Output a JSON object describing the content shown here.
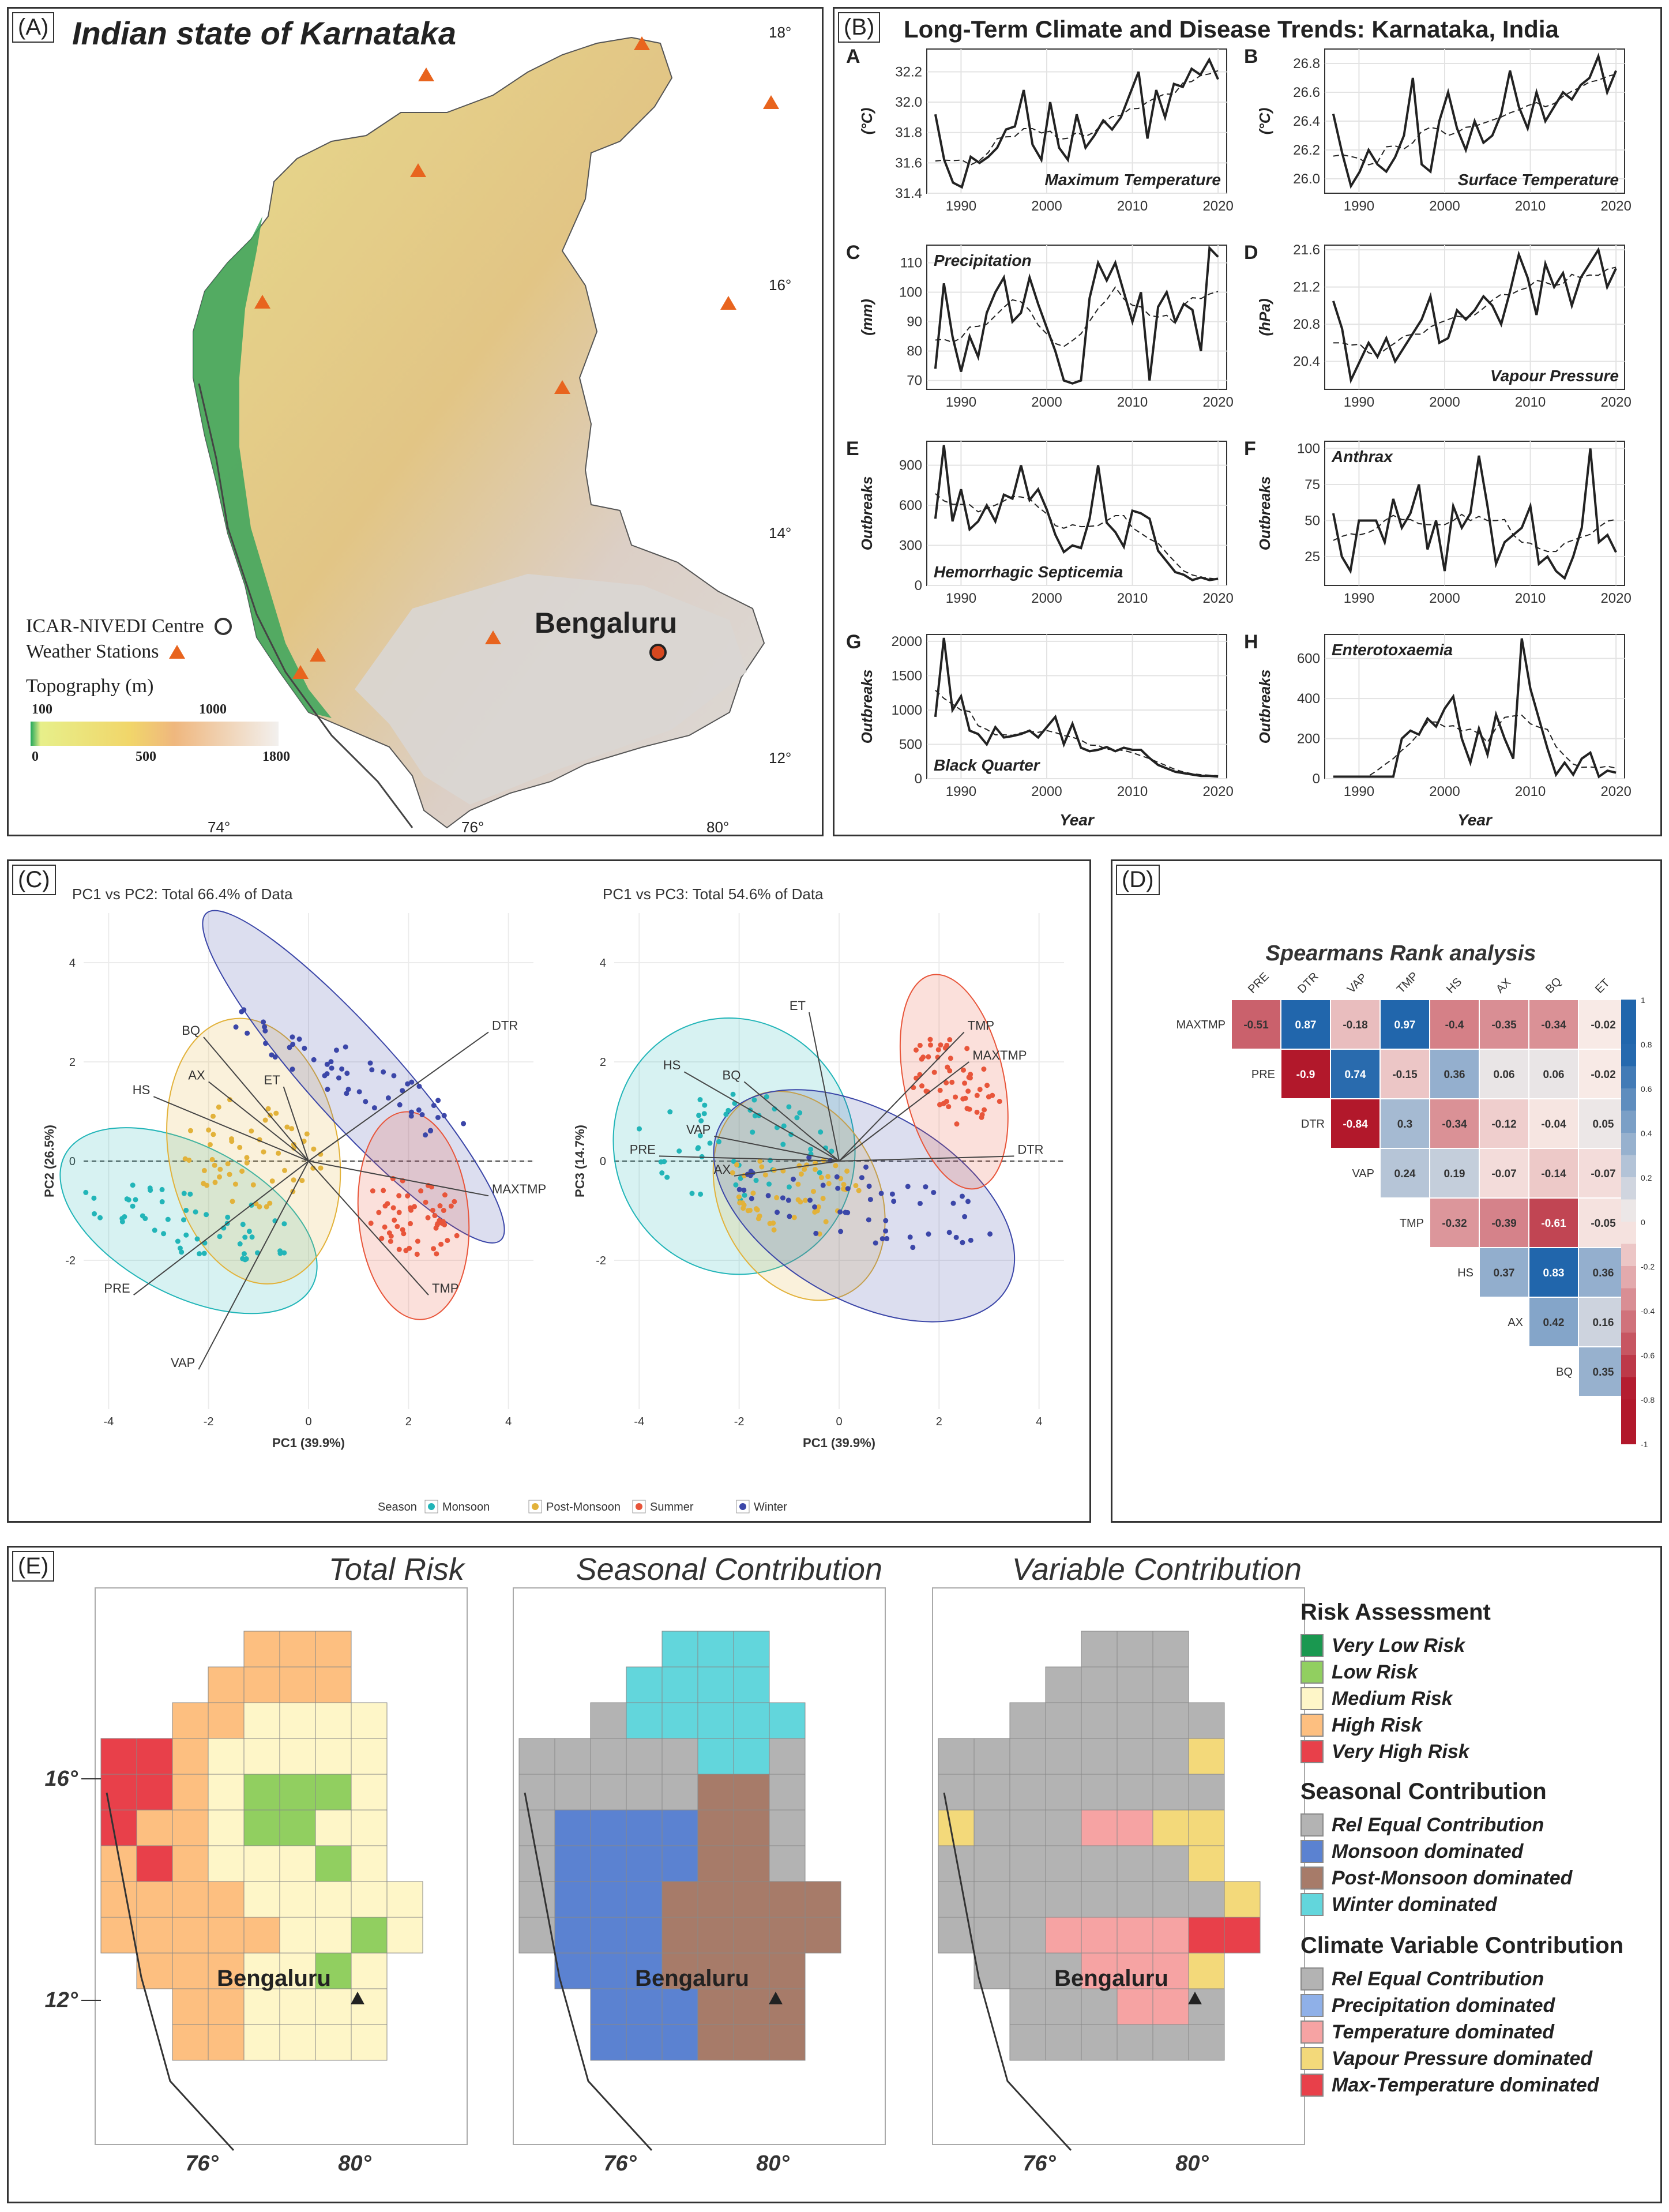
{
  "panelA": {
    "tag": "(A)",
    "title": "Indian state of Karnataka",
    "lat_labels": [
      "18°",
      "16°",
      "14°",
      "12°"
    ],
    "lon_labels": [
      "74°",
      "76°",
      "80°"
    ],
    "city": "Bengaluru",
    "legend": {
      "centre": "ICAR-NIVEDI Centre",
      "stations": "Weather Stations",
      "topo_title": "Topography (m)",
      "ticks_top": [
        "100",
        "1000"
      ],
      "ticks_bottom": [
        "0",
        "500",
        "1800"
      ]
    },
    "colors": {
      "land_low": "#e6d98a",
      "land_mid": "#d9b87a",
      "coast": "#3aa55c",
      "highland": "#d8d4d0",
      "station": "#e8641e"
    }
  },
  "panelB": {
    "tag": "(B)",
    "title": "Long-Term Climate and Disease Trends: Karnataka, India",
    "xlabel": "Year",
    "subplots": [
      {
        "letter": "A",
        "label": "Maximum Temperature",
        "ylab": "(°C)",
        "yticks": [
          "31.4",
          "31.6",
          "31.8",
          "32.0",
          "32.2"
        ],
        "ymin": 31.4,
        "ymax": 32.35,
        "label_pos": "br",
        "values": [
          31.92,
          31.62,
          31.47,
          31.44,
          31.64,
          31.6,
          31.64,
          31.7,
          31.82,
          31.84,
          32.08,
          31.72,
          31.62,
          32.0,
          31.7,
          31.62,
          31.92,
          31.7,
          31.78,
          31.88,
          31.82,
          31.9,
          32.05,
          32.2,
          31.76,
          32.08,
          31.9,
          32.12,
          32.1,
          32.22,
          32.18,
          32.28,
          32.15
        ]
      },
      {
        "letter": "B",
        "label": "Surface Temperature",
        "ylab": "(°C)",
        "yticks": [
          "26.0",
          "26.2",
          "26.4",
          "26.6",
          "26.8"
        ],
        "ymin": 25.9,
        "ymax": 26.9,
        "label_pos": "br",
        "values": [
          26.45,
          26.18,
          25.95,
          26.05,
          26.2,
          26.1,
          26.05,
          26.15,
          26.3,
          26.7,
          26.1,
          26.05,
          26.4,
          26.6,
          26.35,
          26.2,
          26.4,
          26.25,
          26.3,
          26.45,
          26.75,
          26.5,
          26.35,
          26.6,
          26.4,
          26.5,
          26.6,
          26.55,
          26.65,
          26.7,
          26.85,
          26.6,
          26.75
        ]
      },
      {
        "letter": "C",
        "label": "Precipitation",
        "ylab": "(mm)",
        "yticks": [
          "70",
          "80",
          "90",
          "100",
          "110"
        ],
        "ymin": 67,
        "ymax": 116,
        "label_pos": "tl",
        "values": [
          74,
          103,
          85,
          73,
          85,
          78,
          93,
          100,
          105,
          90,
          93,
          105,
          96,
          88,
          80,
          70,
          69,
          70,
          98,
          110,
          104,
          110,
          100,
          90,
          100,
          70,
          95,
          100,
          90,
          96,
          94,
          80,
          115,
          112
        ]
      },
      {
        "letter": "D",
        "label": "Vapour Pressure",
        "ylab": "(hPa)",
        "yticks": [
          "20.4",
          "20.8",
          "21.2",
          "21.6"
        ],
        "ymin": 20.1,
        "ymax": 21.65,
        "label_pos": "br",
        "values": [
          21.05,
          20.75,
          20.2,
          20.4,
          20.6,
          20.45,
          20.65,
          20.4,
          20.55,
          20.7,
          20.85,
          21.1,
          20.6,
          20.65,
          20.95,
          20.85,
          20.95,
          21.1,
          21.0,
          20.8,
          21.15,
          21.55,
          21.3,
          20.9,
          21.45,
          21.2,
          21.35,
          21.0,
          21.3,
          21.45,
          21.6,
          21.2,
          21.4
        ]
      },
      {
        "letter": "E",
        "label": "Hemorrhagic Septicemia",
        "ylab": "Outbreaks",
        "yticks": [
          "0",
          "300",
          "600",
          "900"
        ],
        "ymin": 0,
        "ymax": 1080,
        "label_pos": "bl",
        "values": [
          500,
          1050,
          480,
          720,
          420,
          480,
          600,
          480,
          680,
          650,
          900,
          640,
          720,
          570,
          380,
          250,
          300,
          280,
          500,
          900,
          470,
          400,
          290,
          560,
          540,
          500,
          260,
          180,
          100,
          80,
          40,
          60,
          40,
          50
        ]
      },
      {
        "letter": "F",
        "label": "Anthrax",
        "ylab": "Outbreaks",
        "yticks": [
          "25",
          "50",
          "75",
          "100"
        ],
        "ymin": 5,
        "ymax": 105,
        "label_pos": "tl",
        "values": [
          55,
          25,
          15,
          50,
          50,
          50,
          35,
          65,
          45,
          55,
          75,
          30,
          50,
          15,
          60,
          45,
          55,
          95,
          60,
          20,
          35,
          40,
          45,
          60,
          20,
          25,
          15,
          10,
          25,
          45,
          100,
          35,
          40,
          28
        ]
      },
      {
        "letter": "G",
        "label": "Black Quarter",
        "ylab": "Outbreaks",
        "yticks": [
          "0",
          "500",
          "1000",
          "1500",
          "2000"
        ],
        "ymin": 0,
        "ymax": 2100,
        "label_pos": "bl",
        "values": [
          900,
          2050,
          1000,
          1200,
          700,
          650,
          500,
          750,
          600,
          620,
          650,
          700,
          600,
          750,
          900,
          500,
          800,
          450,
          400,
          420,
          460,
          400,
          450,
          420,
          420,
          300,
          200,
          150,
          100,
          80,
          60,
          40,
          40,
          30
        ]
      },
      {
        "letter": "H",
        "label": "Enterotoxaemia",
        "ylab": "Outbreaks",
        "yticks": [
          "0",
          "200",
          "400",
          "600"
        ],
        "ymin": 0,
        "ymax": 720,
        "label_pos": "tl",
        "values": [
          10,
          10,
          10,
          10,
          10,
          10,
          10,
          10,
          200,
          240,
          220,
          300,
          260,
          350,
          410,
          200,
          80,
          250,
          120,
          320,
          200,
          100,
          700,
          450,
          300,
          150,
          20,
          80,
          20,
          100,
          130,
          10,
          40,
          30
        ]
      }
    ],
    "xticks": [
      "1990",
      "2000",
      "2010",
      "2020"
    ]
  },
  "panelC": {
    "tag": "(C)",
    "left_title": "PC1 vs PC2: Total 66.4% of Data",
    "right_title": "PC1 vs PC3: Total 54.6% of Data",
    "left_ylab": "PC2 (26.5%)",
    "right_ylab": "PC3 (14.7%)",
    "xlab": "PC1 (39.9%)",
    "ticks": [
      "-4",
      "-2",
      "0",
      "2",
      "4"
    ],
    "yticks_left": [
      "4",
      "2",
      "0",
      "-2"
    ],
    "yticks_right": [
      "4",
      "2",
      "0",
      "-2"
    ],
    "vectors_left": [
      {
        "name": "DTR",
        "dx": 3.6,
        "dy": 2.6
      },
      {
        "name": "MAXTMP",
        "dx": 3.6,
        "dy": -0.7
      },
      {
        "name": "TMP",
        "dx": 2.4,
        "dy": -2.7
      },
      {
        "name": "VAP",
        "dx": -2.2,
        "dy": -4.2
      },
      {
        "name": "PRE",
        "dx": -3.5,
        "dy": -2.7
      },
      {
        "name": "HS",
        "dx": -3.1,
        "dy": 1.3
      },
      {
        "name": "AX",
        "dx": -2.0,
        "dy": 1.6
      },
      {
        "name": "BQ",
        "dx": -2.1,
        "dy": 2.5
      },
      {
        "name": "ET",
        "dx": -0.5,
        "dy": 1.5
      }
    ],
    "vectors_right": [
      {
        "name": "TMP",
        "dx": 2.5,
        "dy": 2.6
      },
      {
        "name": "MAXTMP",
        "dx": 2.6,
        "dy": 2.0
      },
      {
        "name": "DTR",
        "dx": 3.5,
        "dy": 0.1
      },
      {
        "name": "ET",
        "dx": -0.6,
        "dy": 3.0
      },
      {
        "name": "HS",
        "dx": -3.1,
        "dy": 1.8
      },
      {
        "name": "BQ",
        "dx": -1.9,
        "dy": 1.6
      },
      {
        "name": "AX",
        "dx": -2.1,
        "dy": -0.3
      },
      {
        "name": "VAP",
        "dx": -2.5,
        "dy": 0.5
      },
      {
        "name": "PRE",
        "dx": -3.6,
        "dy": 0.1
      }
    ],
    "legend": {
      "title": "Season",
      "items": [
        "Monsoon",
        "Post-Monsoon",
        "Summer",
        "Winter"
      ]
    },
    "colors": {
      "Monsoon": "#22b5b8",
      "Post-Monsoon": "#e2b23a",
      "Summer": "#e8553a",
      "Winter": "#3b46a8"
    }
  },
  "panelD": {
    "tag": "(D)",
    "title": "Spearmans Rank analysis",
    "cols": [
      "PRE",
      "DTR",
      "VAP",
      "TMP",
      "HS",
      "AX",
      "BQ",
      "ET"
    ],
    "rows": [
      "MAXTMP",
      "PRE",
      "DTR",
      "VAP",
      "TMP",
      "HS",
      "AX",
      "BQ"
    ],
    "matrix": [
      [
        -0.51,
        0.87,
        -0.18,
        0.97,
        -0.4,
        -0.35,
        -0.34,
        -0.02
      ],
      [
        null,
        -0.9,
        0.74,
        -0.15,
        0.36,
        0.06,
        0.06,
        -0.02
      ],
      [
        null,
        null,
        -0.84,
        0.3,
        -0.34,
        -0.12,
        -0.04,
        0.05
      ],
      [
        null,
        null,
        null,
        0.24,
        0.19,
        -0.07,
        -0.14,
        -0.07
      ],
      [
        null,
        null,
        null,
        null,
        -0.32,
        -0.39,
        -0.61,
        -0.05
      ],
      [
        null,
        null,
        null,
        null,
        null,
        0.37,
        0.83,
        0.36
      ],
      [
        null,
        null,
        null,
        null,
        null,
        null,
        0.42,
        0.16
      ],
      [
        null,
        null,
        null,
        null,
        null,
        null,
        null,
        0.35
      ]
    ],
    "scale_ticks": [
      "1",
      "0.8",
      "0.6",
      "0.4",
      "0.2",
      "0",
      "-0.2",
      "-0.4",
      "-0.6",
      "-0.8",
      "-1"
    ]
  },
  "panelE": {
    "tag": "(E)",
    "map_titles": [
      "Total Risk",
      "Seasonal Contribution",
      "Variable Contribution"
    ],
    "city": "Bengaluru",
    "lat_labels": [
      "16°",
      "12°"
    ],
    "lon_labels": [
      "76°",
      "80°"
    ],
    "legend": {
      "risk_title": "Risk Assessment",
      "risk_items": [
        "Very Low Risk",
        "Low Risk",
        "Medium Risk",
        "High Risk",
        "Very High Risk"
      ],
      "risk_colors": [
        "#1a9850",
        "#91cf60",
        "#fef6c8",
        "#fdbf80",
        "#e8404a"
      ],
      "season_title": "Seasonal Contribution",
      "season_items": [
        "Rel Equal Contribution",
        "Monsoon dominated",
        "Post-Monsoon dominated",
        "Winter dominated"
      ],
      "season_colors": [
        "#b3b3b3",
        "#5b82d1",
        "#a77b69",
        "#62d6dc"
      ],
      "var_title": "Climate Variable Contribution",
      "var_items": [
        "Rel Equal Contribution",
        "Precipitation dominated",
        "Temperature dominated",
        "Vapour Pressure dominated",
        "Max-Temperature dominated"
      ],
      "var_colors": [
        "#b3b3b3",
        "#8fb0e8",
        "#f6a3a3",
        "#f3d97a",
        "#e8404a"
      ]
    }
  }
}
